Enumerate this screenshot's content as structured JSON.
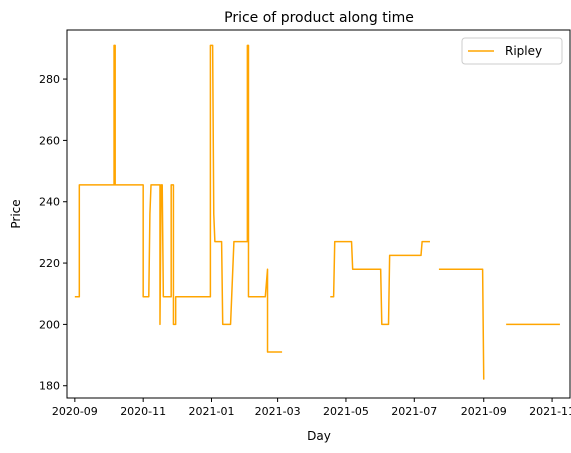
{
  "chart_data": {
    "type": "line",
    "title": "Price of product along time",
    "xlabel": "Day",
    "ylabel": "Price",
    "xlim": [
      "2020-08-25",
      "2021-11-17"
    ],
    "ylim": [
      176,
      296
    ],
    "x_ticks": [
      "2020-09-01",
      "2020-11-01",
      "2021-01-01",
      "2021-03-01",
      "2021-05-01",
      "2021-07-01",
      "2021-09-01",
      "2021-11-01"
    ],
    "x_tick_labels": [
      "2020-09",
      "2020-11",
      "2021-01",
      "2021-03",
      "2021-05",
      "2021-07",
      "2021-09",
      "2021-11"
    ],
    "y_ticks": [
      180,
      200,
      220,
      240,
      260,
      280
    ],
    "y_tick_labels": [
      "180",
      "200",
      "220",
      "240",
      "260",
      "280"
    ],
    "grid": false,
    "legend_position": "top-right",
    "series": [
      {
        "name": "Ripley",
        "color": "#ffa500",
        "segments": [
          [
            [
              "2020-09-01",
              209
            ],
            [
              "2020-09-05",
              209
            ],
            [
              "2020-09-05",
              245.5
            ],
            [
              "2020-10-06",
              245.5
            ],
            [
              "2020-10-06",
              291
            ],
            [
              "2020-10-07",
              291
            ],
            [
              "2020-10-07",
              245.5
            ],
            [
              "2020-11-01",
              245.5
            ],
            [
              "2020-11-01",
              209
            ],
            [
              "2020-11-06",
              209
            ],
            [
              "2020-11-07",
              236
            ],
            [
              "2020-11-08",
              245.5
            ],
            [
              "2020-11-16",
              245.5
            ],
            [
              "2020-11-16",
              200
            ],
            [
              "2020-11-17",
              245.5
            ],
            [
              "2020-11-18",
              245.5
            ],
            [
              "2020-11-19",
              209
            ],
            [
              "2020-11-26",
              209
            ],
            [
              "2020-11-26",
              245.5
            ],
            [
              "2020-11-28",
              245.5
            ],
            [
              "2020-11-28",
              200
            ],
            [
              "2020-11-30",
              200
            ],
            [
              "2020-11-30",
              209
            ],
            [
              "2020-12-31",
              209
            ],
            [
              "2020-12-31",
              291
            ],
            [
              "2021-01-02",
              291
            ],
            [
              "2021-01-03",
              236
            ],
            [
              "2021-01-04",
              227
            ],
            [
              "2021-01-10",
              227
            ],
            [
              "2021-01-11",
              200
            ],
            [
              "2021-01-18",
              200
            ],
            [
              "2021-01-19",
              209
            ],
            [
              "2021-01-21",
              227
            ],
            [
              "2021-02-02",
              227
            ],
            [
              "2021-02-02",
              291
            ],
            [
              "2021-02-03",
              291
            ],
            [
              "2021-02-03",
              209
            ],
            [
              "2021-02-18",
              209
            ],
            [
              "2021-02-20",
              218
            ],
            [
              "2021-02-20",
              191
            ],
            [
              "2021-03-05",
              191
            ]
          ],
          [
            [
              "2021-04-17",
              209
            ],
            [
              "2021-04-20",
              209
            ],
            [
              "2021-04-21",
              227
            ],
            [
              "2021-05-06",
              227
            ],
            [
              "2021-05-07",
              218
            ],
            [
              "2021-06-01",
              218
            ],
            [
              "2021-06-02",
              200
            ],
            [
              "2021-06-08",
              200
            ],
            [
              "2021-06-09",
              222.5
            ],
            [
              "2021-07-07",
              222.5
            ],
            [
              "2021-07-08",
              227
            ],
            [
              "2021-07-15",
              227
            ]
          ],
          [
            [
              "2021-07-23",
              218
            ],
            [
              "2021-08-31",
              218
            ],
            [
              "2021-09-01",
              182
            ]
          ],
          [
            [
              "2021-09-21",
              200
            ],
            [
              "2021-11-08",
              200
            ]
          ]
        ]
      }
    ]
  }
}
